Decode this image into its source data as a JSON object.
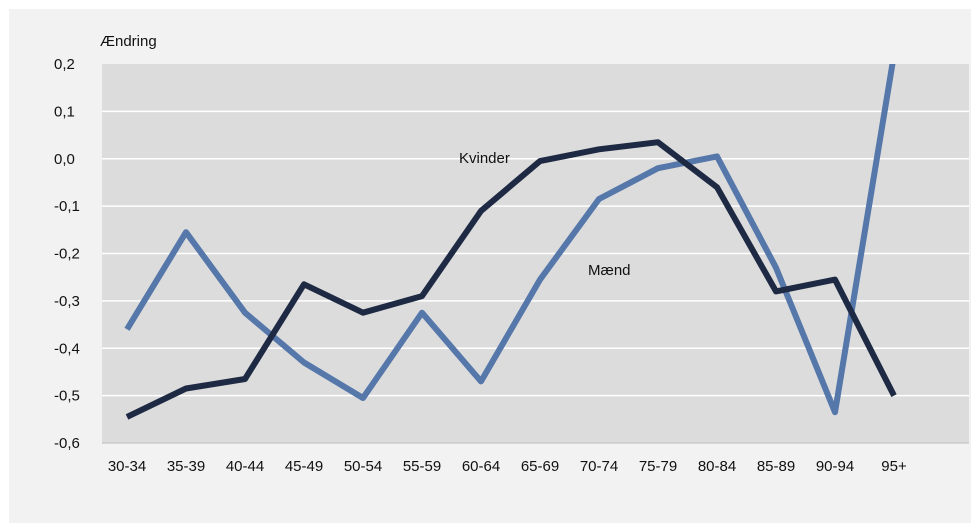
{
  "chart_data": {
    "type": "line",
    "title": "",
    "ylabel": "Ændring",
    "xlabel": "",
    "categories": [
      "30-34",
      "35-39",
      "40-44",
      "45-49",
      "50-54",
      "55-59",
      "60-64",
      "65-69",
      "70-74",
      "75-79",
      "80-84",
      "85-89",
      "90-94",
      "95+"
    ],
    "ylim": [
      -0.6,
      0.2
    ],
    "yticks": [
      0.2,
      0.1,
      0.0,
      -0.1,
      -0.2,
      -0.3,
      -0.4,
      -0.5,
      -0.6
    ],
    "ytick_labels": [
      "0,2",
      "0,1",
      "0,0",
      "-0,1",
      "-0,2",
      "-0,3",
      "-0,4",
      "-0,5",
      "-0,6"
    ],
    "grid": true,
    "series": [
      {
        "name": "Kvinder",
        "color": "#1e2a44",
        "values": [
          -0.545,
          -0.485,
          -0.465,
          -0.265,
          -0.325,
          -0.29,
          -0.11,
          -0.005,
          0.02,
          0.035,
          -0.06,
          -0.28,
          -0.255,
          -0.5
        ]
      },
      {
        "name": "Mænd",
        "color": "#5577aa",
        "values": [
          -0.36,
          -0.155,
          -0.325,
          -0.43,
          -0.505,
          -0.325,
          -0.47,
          -0.255,
          -0.085,
          -0.02,
          0.005,
          -0.23,
          -0.535,
          0.22
        ]
      }
    ]
  }
}
